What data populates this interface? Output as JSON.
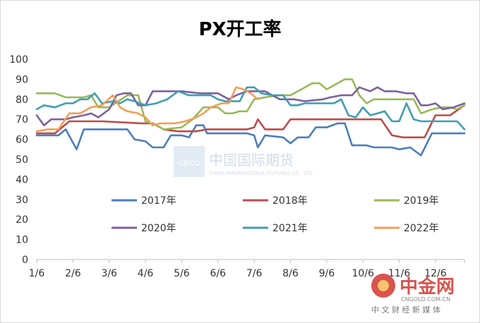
{
  "chart_data": {
    "type": "line",
    "title": "PX开工率",
    "xlabel": "",
    "ylabel": "",
    "ylim": [
      0,
      100
    ],
    "yticks": [
      0,
      10,
      20,
      30,
      40,
      50,
      60,
      70,
      80,
      90,
      100
    ],
    "xticks": [
      "1/6",
      "2/6",
      "3/6",
      "4/6",
      "5/6",
      "6/6",
      "7/6",
      "8/6",
      "9/6",
      "10/6",
      "11/6",
      "12/6"
    ],
    "grid": false,
    "legend": "center",
    "series": [
      {
        "name": "2017年",
        "color": "#4A7EBB",
        "points": [
          [
            0,
            62
          ],
          [
            0.6,
            62
          ],
          [
            0.8,
            65
          ],
          [
            1.1,
            55
          ],
          [
            1.3,
            65
          ],
          [
            2.5,
            65
          ],
          [
            2.7,
            60
          ],
          [
            3,
            59
          ],
          [
            3.2,
            56
          ],
          [
            3.5,
            56
          ],
          [
            3.7,
            62
          ],
          [
            4,
            62
          ],
          [
            4.2,
            61
          ],
          [
            4.4,
            67
          ],
          [
            4.6,
            67
          ],
          [
            4.7,
            63
          ],
          [
            5.6,
            63
          ],
          [
            5.8,
            63
          ],
          [
            6,
            62
          ],
          [
            6.1,
            56
          ],
          [
            6.3,
            62
          ],
          [
            6.8,
            61
          ],
          [
            7,
            58
          ],
          [
            7.2,
            61
          ],
          [
            7.5,
            61
          ],
          [
            7.7,
            66
          ],
          [
            8,
            66
          ],
          [
            8.3,
            68
          ],
          [
            8.5,
            68
          ],
          [
            8.7,
            57
          ],
          [
            9.1,
            57
          ],
          [
            9.3,
            56
          ],
          [
            9.8,
            56
          ],
          [
            10,
            55
          ],
          [
            10.3,
            56
          ],
          [
            10.6,
            52
          ],
          [
            10.9,
            63
          ],
          [
            11.4,
            63
          ],
          [
            11.8,
            63
          ]
        ]
      },
      {
        "name": "2018年",
        "color": "#BE4B48",
        "points": [
          [
            0,
            63
          ],
          [
            0.5,
            63
          ],
          [
            0.9,
            69
          ],
          [
            1.8,
            69
          ],
          [
            2.9,
            68
          ],
          [
            3.2,
            68
          ],
          [
            3.5,
            65
          ],
          [
            3.9,
            64
          ],
          [
            4.4,
            64
          ],
          [
            4.7,
            65
          ],
          [
            5,
            65
          ],
          [
            5.8,
            65
          ],
          [
            6,
            66
          ],
          [
            6.1,
            70
          ],
          [
            6.3,
            65
          ],
          [
            6.8,
            65
          ],
          [
            7,
            70
          ],
          [
            7.4,
            70
          ],
          [
            7.8,
            70
          ],
          [
            8.2,
            70
          ],
          [
            8.6,
            70
          ],
          [
            9,
            70
          ],
          [
            9.5,
            70
          ],
          [
            9.8,
            62
          ],
          [
            10.1,
            61
          ],
          [
            10.7,
            61
          ],
          [
            11,
            72
          ],
          [
            11.4,
            72
          ],
          [
            11.8,
            77
          ]
        ]
      },
      {
        "name": "2019年",
        "color": "#98B954",
        "points": [
          [
            0,
            83
          ],
          [
            0.5,
            83
          ],
          [
            0.8,
            81
          ],
          [
            1.3,
            81
          ],
          [
            1.5,
            82
          ],
          [
            1.7,
            76
          ],
          [
            2,
            76
          ],
          [
            2.5,
            82
          ],
          [
            2.8,
            82
          ],
          [
            3,
            69
          ],
          [
            3.3,
            67
          ],
          [
            3.5,
            65
          ],
          [
            4,
            66
          ],
          [
            4.3,
            70
          ],
          [
            4.6,
            76
          ],
          [
            5,
            76
          ],
          [
            5.2,
            73
          ],
          [
            5.4,
            73
          ],
          [
            5.6,
            74
          ],
          [
            5.8,
            74
          ],
          [
            6,
            80
          ],
          [
            6.3,
            81
          ],
          [
            6.7,
            82
          ],
          [
            7,
            82
          ],
          [
            7.3,
            85
          ],
          [
            7.6,
            88
          ],
          [
            7.8,
            88
          ],
          [
            8,
            85
          ],
          [
            8.2,
            87
          ],
          [
            8.5,
            90
          ],
          [
            8.7,
            90
          ],
          [
            8.9,
            82
          ],
          [
            9.1,
            78
          ],
          [
            9.3,
            80
          ],
          [
            9.7,
            80
          ],
          [
            10.1,
            80
          ],
          [
            10.4,
            80
          ],
          [
            10.6,
            73
          ],
          [
            10.9,
            75
          ],
          [
            11.2,
            76
          ],
          [
            11.4,
            76
          ],
          [
            11.6,
            75
          ],
          [
            11.8,
            77
          ]
        ]
      },
      {
        "name": "2020年",
        "color": "#7D60A0",
        "points": [
          [
            0,
            72
          ],
          [
            0.2,
            67
          ],
          [
            0.4,
            70
          ],
          [
            0.8,
            70
          ],
          [
            1,
            71
          ],
          [
            1.3,
            72
          ],
          [
            1.5,
            73
          ],
          [
            1.7,
            71
          ],
          [
            2,
            75
          ],
          [
            2.2,
            82
          ],
          [
            2.4,
            83
          ],
          [
            2.6,
            83
          ],
          [
            2.8,
            77
          ],
          [
            3,
            77
          ],
          [
            3.2,
            84
          ],
          [
            3.5,
            84
          ],
          [
            3.8,
            84
          ],
          [
            4,
            84
          ],
          [
            4.5,
            83
          ],
          [
            5,
            83
          ],
          [
            5.3,
            80
          ],
          [
            5.5,
            82
          ],
          [
            5.8,
            84
          ],
          [
            6,
            84
          ],
          [
            6.3,
            84
          ],
          [
            6.5,
            82
          ],
          [
            6.7,
            80
          ],
          [
            7.1,
            80
          ],
          [
            7.4,
            79
          ],
          [
            7.9,
            80
          ],
          [
            8.1,
            81
          ],
          [
            8.4,
            82
          ],
          [
            8.7,
            82
          ],
          [
            8.9,
            86
          ],
          [
            9.2,
            84
          ],
          [
            9.4,
            86
          ],
          [
            9.6,
            84
          ],
          [
            9.9,
            84
          ],
          [
            10.2,
            83
          ],
          [
            10.4,
            83
          ],
          [
            10.6,
            77
          ],
          [
            10.8,
            77
          ],
          [
            11,
            78
          ],
          [
            11.2,
            75
          ],
          [
            11.5,
            76
          ],
          [
            11.8,
            78
          ]
        ]
      },
      {
        "name": "2021年",
        "color": "#3F9DB5",
        "points": [
          [
            0,
            75
          ],
          [
            0.2,
            77
          ],
          [
            0.5,
            76
          ],
          [
            0.8,
            78
          ],
          [
            1,
            78
          ],
          [
            1.2,
            80
          ],
          [
            1.4,
            80
          ],
          [
            1.6,
            83
          ],
          [
            1.8,
            78
          ],
          [
            2.1,
            79
          ],
          [
            2.3,
            78
          ],
          [
            2.5,
            80
          ],
          [
            2.7,
            79
          ],
          [
            3,
            77
          ],
          [
            3.3,
            78
          ],
          [
            3.6,
            80
          ],
          [
            3.9,
            84
          ],
          [
            4.2,
            82
          ],
          [
            4.6,
            82
          ],
          [
            4.8,
            82
          ],
          [
            5,
            80
          ],
          [
            5.2,
            79
          ],
          [
            5.4,
            79
          ],
          [
            5.6,
            79
          ],
          [
            5.8,
            86
          ],
          [
            6,
            86
          ],
          [
            6.2,
            83
          ],
          [
            6.5,
            82
          ],
          [
            6.8,
            82
          ],
          [
            7,
            77
          ],
          [
            7.2,
            77
          ],
          [
            7.4,
            78
          ],
          [
            7.6,
            78
          ],
          [
            7.8,
            78
          ],
          [
            8,
            78
          ],
          [
            8.2,
            78
          ],
          [
            8.4,
            80
          ],
          [
            8.6,
            72
          ],
          [
            8.8,
            71
          ],
          [
            9,
            76
          ],
          [
            9.2,
            72
          ],
          [
            9.4,
            73
          ],
          [
            9.6,
            74
          ],
          [
            9.8,
            69
          ],
          [
            10,
            69
          ],
          [
            10.2,
            78
          ],
          [
            10.4,
            70
          ],
          [
            10.6,
            69
          ],
          [
            11,
            69
          ],
          [
            11.2,
            69
          ],
          [
            11.4,
            69
          ],
          [
            11.6,
            69
          ],
          [
            11.8,
            65
          ]
        ]
      },
      {
        "name": "2022年",
        "color": "#F59D56",
        "points": [
          [
            0,
            64
          ],
          [
            0.3,
            65
          ],
          [
            0.6,
            65
          ],
          [
            0.9,
            73
          ],
          [
            1.2,
            73
          ],
          [
            1.5,
            76
          ],
          [
            1.8,
            77
          ],
          [
            2.1,
            82
          ],
          [
            2.3,
            76
          ],
          [
            2.5,
            74
          ],
          [
            2.8,
            73
          ],
          [
            3,
            71
          ],
          [
            3.2,
            67
          ],
          [
            3.4,
            68
          ],
          [
            3.6,
            68
          ],
          [
            3.8,
            68
          ],
          [
            4.1,
            69
          ],
          [
            4.4,
            71
          ],
          [
            4.6,
            73
          ],
          [
            4.8,
            76
          ],
          [
            5.1,
            78
          ],
          [
            5.3,
            78
          ],
          [
            5.5,
            86
          ],
          [
            5.7,
            85
          ],
          [
            5.9,
            83
          ],
          [
            6.1,
            80
          ]
        ]
      }
    ]
  },
  "watermarks": {
    "center_logo": "CIFCO",
    "center_cn": "中国国际期货",
    "center_en": "CHINA INTERNATIONAL FUTURES CO., LTD.",
    "corner_brand": "中金网",
    "corner_url": "CNGOLD.COM.CN",
    "corner_tagline": "中 文 财 经 新 媒 体"
  }
}
